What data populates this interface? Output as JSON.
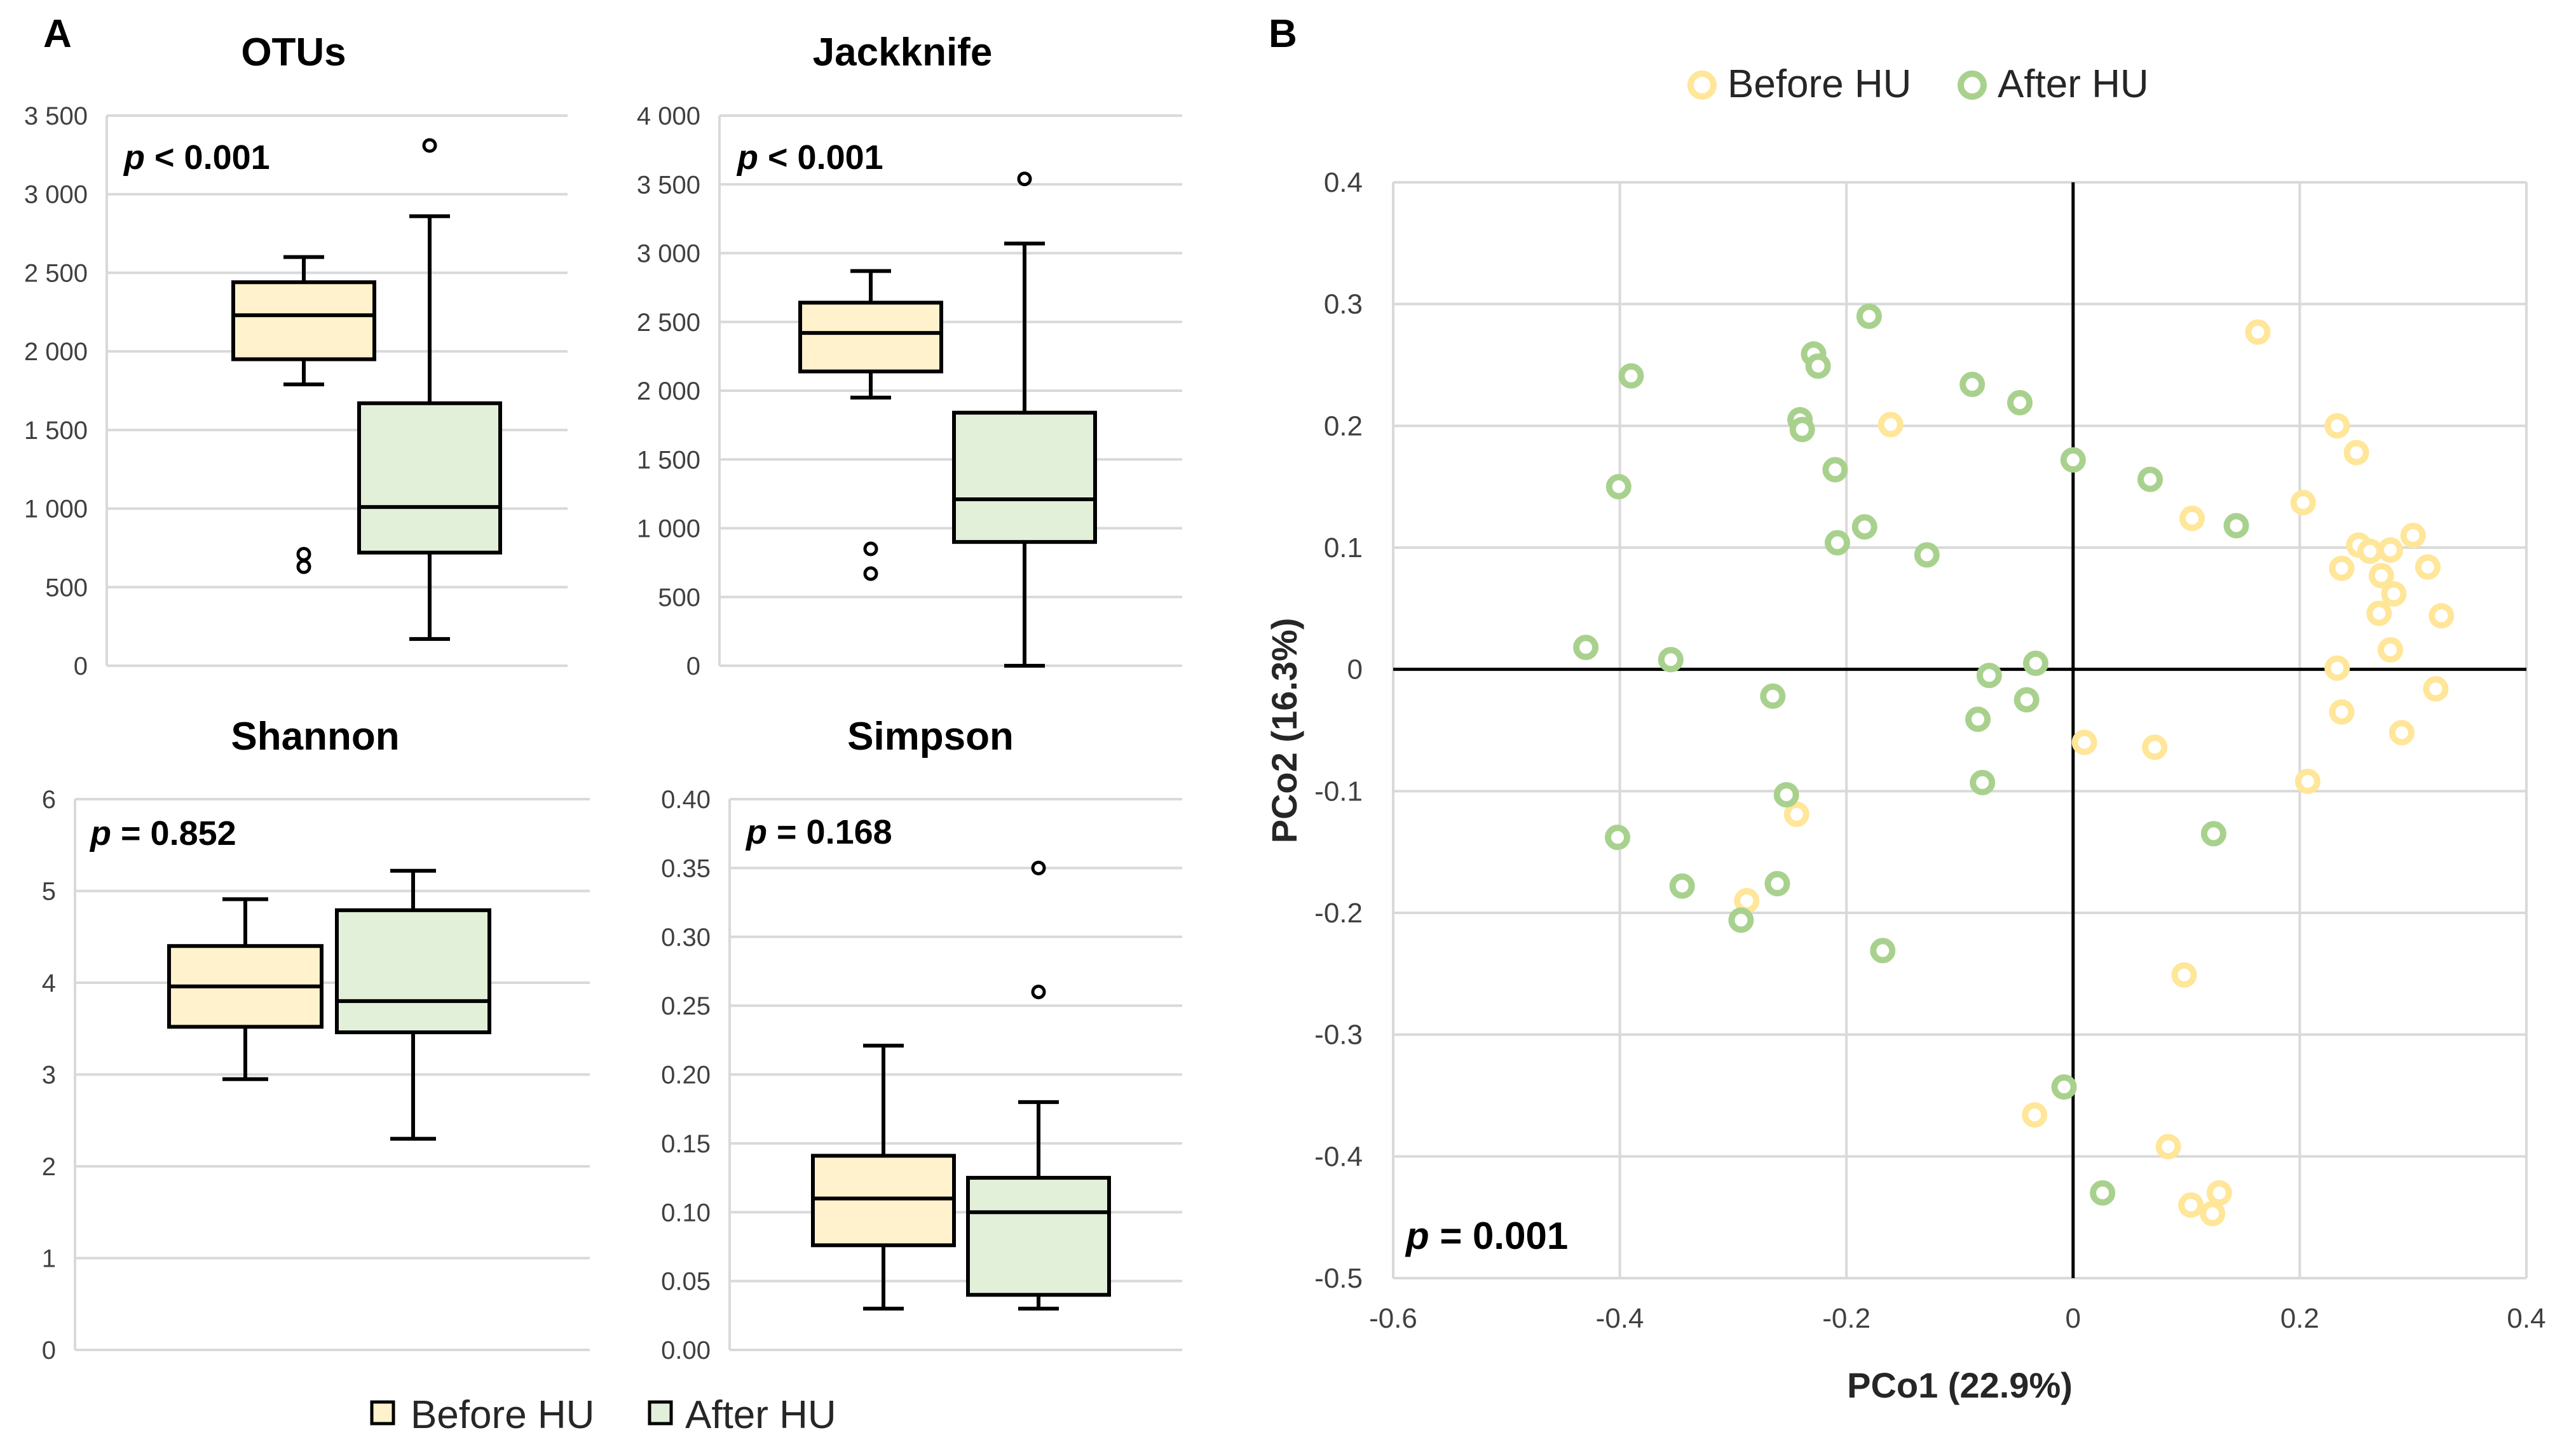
{
  "panel_labels": {
    "a": "A",
    "b": "B"
  },
  "colors": {
    "before_fill": "#FFF2CC",
    "after_fill": "#E2F0D9",
    "before_point": "#FFE699",
    "after_point": "#A9D18E",
    "axis_line": "#000000",
    "grid": "#D9D9D9",
    "text": "#404040"
  },
  "boxplot_legend": {
    "before": "Before HU",
    "after": "After HU"
  },
  "chart_data": [
    {
      "id": "otus",
      "type": "boxplot",
      "title": "OTUs",
      "p_prefix": "p",
      "p_rest": " < 0.001",
      "ylim": [
        0,
        3500
      ],
      "yticks": [
        0,
        500,
        1000,
        1500,
        2000,
        2500,
        3000,
        3500
      ],
      "tick_labels": [
        "0",
        "500",
        "1 000",
        "1 500",
        "2 000",
        "2 500",
        "3 000",
        "3 500"
      ],
      "series": [
        {
          "name": "Before HU",
          "whisker_low": 1790,
          "q1": 1950,
          "median": 2230,
          "q3": 2440,
          "whisker_high": 2600,
          "outliers": [
            710,
            630
          ]
        },
        {
          "name": "After HU",
          "whisker_low": 170,
          "q1": 720,
          "median": 1010,
          "q3": 1670,
          "whisker_high": 2860,
          "outliers": [
            3310
          ]
        }
      ]
    },
    {
      "id": "jackknife",
      "type": "boxplot",
      "title": "Jackknife",
      "p_prefix": "p",
      "p_rest": " < 0.001",
      "ylim": [
        0,
        4000
      ],
      "yticks": [
        0,
        500,
        1000,
        1500,
        2000,
        2500,
        3000,
        3500,
        4000
      ],
      "tick_labels": [
        "0",
        "500",
        "1 000",
        "1 500",
        "2 000",
        "2 500",
        "3 000",
        "3 500",
        "4 000"
      ],
      "series": [
        {
          "name": "Before HU",
          "whisker_low": 1950,
          "q1": 2140,
          "median": 2420,
          "q3": 2640,
          "whisker_high": 2870,
          "outliers": [
            850,
            670
          ]
        },
        {
          "name": "After HU",
          "whisker_low": 0,
          "q1": 900,
          "median": 1210,
          "q3": 1840,
          "whisker_high": 3070,
          "outliers": [
            3540
          ]
        }
      ]
    },
    {
      "id": "shannon",
      "type": "boxplot",
      "title": "Shannon",
      "p_prefix": "p",
      "p_rest": " = 0.852",
      "ylim": [
        0,
        6
      ],
      "yticks": [
        0,
        1,
        2,
        3,
        4,
        5,
        6
      ],
      "tick_labels": [
        "0",
        "1",
        "2",
        "3",
        "4",
        "5",
        "6"
      ],
      "series": [
        {
          "name": "Before HU",
          "whisker_low": 2.95,
          "q1": 3.52,
          "median": 3.96,
          "q3": 4.4,
          "whisker_high": 4.91,
          "outliers": []
        },
        {
          "name": "After HU",
          "whisker_low": 2.3,
          "q1": 3.46,
          "median": 3.8,
          "q3": 4.79,
          "whisker_high": 5.22,
          "outliers": []
        }
      ]
    },
    {
      "id": "simpson",
      "type": "boxplot",
      "title": "Simpson",
      "p_prefix": "p",
      "p_rest": " = 0.168",
      "ylim": [
        0,
        0.4
      ],
      "yticks": [
        0,
        0.05,
        0.1,
        0.15,
        0.2,
        0.25,
        0.3,
        0.35,
        0.4
      ],
      "tick_labels": [
        "0.00",
        "0.05",
        "0.10",
        "0.15",
        "0.20",
        "0.25",
        "0.30",
        "0.35",
        "0.40"
      ],
      "series": [
        {
          "name": "Before HU",
          "whisker_low": 0.03,
          "q1": 0.076,
          "median": 0.11,
          "q3": 0.141,
          "whisker_high": 0.221,
          "outliers": []
        },
        {
          "name": "After HU",
          "whisker_low": 0.03,
          "q1": 0.04,
          "median": 0.1,
          "q3": 0.125,
          "whisker_high": 0.18,
          "outliers": [
            0.35,
            0.26
          ]
        }
      ]
    },
    {
      "id": "pcoa",
      "type": "scatter",
      "title": "",
      "xlabel": "PCo1 (22.9%)",
      "ylabel": "PCo2 (16.3%)",
      "xlim": [
        -0.6,
        0.4
      ],
      "ylim": [
        -0.5,
        0.4
      ],
      "xticks": [
        -0.6,
        -0.4,
        -0.2,
        0,
        0.2,
        0.4
      ],
      "xtick_labels": [
        "-0.6",
        "-0.4",
        "-0.2",
        "0",
        "0.2",
        "0.4"
      ],
      "yticks": [
        -0.5,
        -0.4,
        -0.3,
        -0.2,
        -0.1,
        0,
        0.1,
        0.2,
        0.3,
        0.4
      ],
      "ytick_labels": [
        "-0.5",
        "-0.4",
        "-0.3",
        "-0.2",
        "-0.1",
        "0",
        "0.1",
        "0.2",
        "0.3",
        "0.4"
      ],
      "p_prefix": "p",
      "p_rest": " = 0.001",
      "legend_position": "top-center",
      "series": [
        {
          "name": "Before HU",
          "points": [
            [
              0.163,
              0.277
            ],
            [
              -0.161,
              0.201
            ],
            [
              0.233,
              0.2
            ],
            [
              0.25,
              0.178
            ],
            [
              0.203,
              0.137
            ],
            [
              0.105,
              0.124
            ],
            [
              0.3,
              0.11
            ],
            [
              0.252,
              0.102
            ],
            [
              0.262,
              0.097
            ],
            [
              0.28,
              0.098
            ],
            [
              0.237,
              0.083
            ],
            [
              0.313,
              0.084
            ],
            [
              0.272,
              0.077
            ],
            [
              0.283,
              0.062
            ],
            [
              0.27,
              0.046
            ],
            [
              0.325,
              0.044
            ],
            [
              0.28,
              0.016
            ],
            [
              0.233,
              0.001
            ],
            [
              0.32,
              -0.016
            ],
            [
              0.237,
              -0.035
            ],
            [
              0.29,
              -0.052
            ],
            [
              0.01,
              -0.06
            ],
            [
              0.072,
              -0.064
            ],
            [
              0.207,
              -0.092
            ],
            [
              -0.244,
              -0.119
            ],
            [
              -0.288,
              -0.19
            ],
            [
              0.098,
              -0.251
            ],
            [
              -0.034,
              -0.366
            ],
            [
              0.084,
              -0.392
            ],
            [
              0.129,
              -0.43
            ],
            [
              0.104,
              -0.44
            ],
            [
              0.123,
              -0.447
            ]
          ]
        },
        {
          "name": "After HU",
          "points": [
            [
              -0.18,
              0.29
            ],
            [
              -0.229,
              0.259
            ],
            [
              -0.225,
              0.249
            ],
            [
              -0.39,
              0.241
            ],
            [
              -0.089,
              0.234
            ],
            [
              -0.047,
              0.219
            ],
            [
              -0.241,
              0.205
            ],
            [
              -0.239,
              0.197
            ],
            [
              0,
              0.172
            ],
            [
              -0.21,
              0.164
            ],
            [
              0.068,
              0.156
            ],
            [
              -0.401,
              0.15
            ],
            [
              0.144,
              0.118
            ],
            [
              -0.184,
              0.117
            ],
            [
              -0.208,
              0.104
            ],
            [
              -0.129,
              0.094
            ],
            [
              -0.43,
              0.018
            ],
            [
              -0.355,
              0.008
            ],
            [
              -0.033,
              0.005
            ],
            [
              -0.074,
              -0.005
            ],
            [
              -0.265,
              -0.022
            ],
            [
              -0.041,
              -0.025
            ],
            [
              -0.084,
              -0.041
            ],
            [
              -0.08,
              -0.093
            ],
            [
              -0.253,
              -0.103
            ],
            [
              0.124,
              -0.135
            ],
            [
              -0.402,
              -0.138
            ],
            [
              -0.345,
              -0.178
            ],
            [
              -0.261,
              -0.176
            ],
            [
              -0.293,
              -0.206
            ],
            [
              -0.168,
              -0.231
            ],
            [
              -0.008,
              -0.343
            ],
            [
              0.026,
              -0.43
            ]
          ]
        }
      ]
    }
  ]
}
